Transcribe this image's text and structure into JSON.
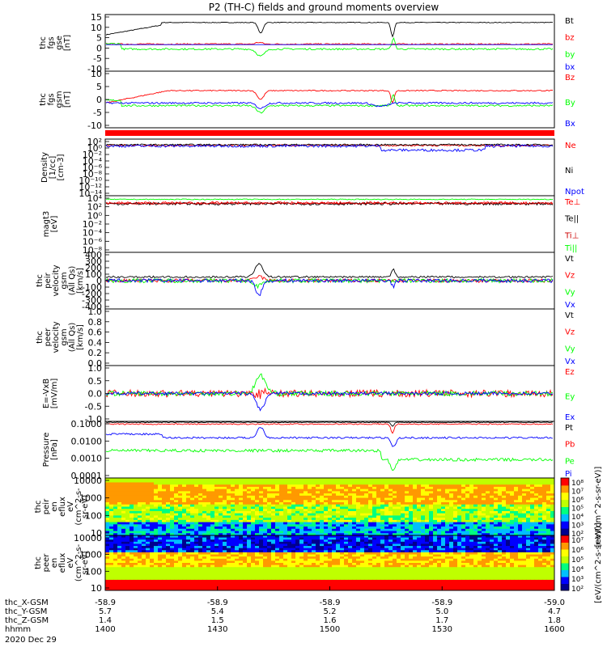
{
  "title": "P2 (TH-C) fields and ground moments overview",
  "colors": {
    "black": "#000000",
    "red": "#ff0000",
    "green": "#00ff00",
    "blue": "#0000ff",
    "red_dark": "#cc0000"
  },
  "date": "2020 Dec 29",
  "time_axis": {
    "row_labels": [
      "thc_X-GSM",
      "thc_Y-GSM",
      "thc_Z-GSM",
      "hhmm"
    ],
    "columns": [
      {
        "values": [
          "-58.9",
          "5.7",
          "1.4",
          "1400"
        ]
      },
      {
        "values": [
          "-58.9",
          "5.4",
          "1.5",
          "1430"
        ]
      },
      {
        "values": [
          "-58.9",
          "5.2",
          "1.6",
          "1500"
        ]
      },
      {
        "values": [
          "-58.9",
          "5.0",
          "1.7",
          "1530"
        ]
      },
      {
        "values": [
          "-59.0",
          "4.7",
          "1.8",
          "1600"
        ]
      }
    ]
  },
  "chart_data": [
    {
      "type": "line",
      "id": "fgs_gse",
      "ylabel": [
        "thc",
        "fgs",
        "gse",
        "[nT]"
      ],
      "ylim": [
        -15,
        17
      ],
      "yticks": [
        "15",
        "10",
        "5",
        "0",
        "-5",
        "-10"
      ],
      "series": [
        {
          "name": "Bt",
          "color": "black"
        },
        {
          "name": "bz",
          "color": "red"
        },
        {
          "name": "by",
          "color": "green"
        },
        {
          "name": "bx",
          "color": "blue"
        }
      ]
    },
    {
      "type": "line",
      "id": "fgs_gsm",
      "ylabel": [
        "thc",
        "fgs",
        "gsm",
        "[nT]"
      ],
      "ylim": [
        -15,
        17
      ],
      "yticks": [
        "10",
        "5",
        "0",
        "-5",
        "-10"
      ],
      "series": [
        {
          "name": "Bz",
          "color": "red"
        },
        {
          "name": "By",
          "color": "green"
        },
        {
          "name": "Bx",
          "color": "blue"
        }
      ]
    },
    {
      "type": "line",
      "id": "density",
      "ylabel": [
        "Density",
        "[1/cc]",
        "[cm-3]"
      ],
      "ylim": [
        -15,
        3
      ],
      "yticks": [
        "10²",
        "10⁰",
        "10⁻²",
        "10⁻⁴",
        "10⁻⁶",
        "10⁻⁸",
        "10⁻¹⁰",
        "10⁻¹²",
        "10⁻¹⁴"
      ],
      "series": [
        {
          "name": "Ne",
          "color": "red"
        },
        {
          "name": "Ni",
          "color": "black"
        },
        {
          "name": "Npot",
          "color": "blue"
        }
      ]
    },
    {
      "type": "line",
      "id": "temperature",
      "ylabel": [
        "magt3",
        "[eV]"
      ],
      "ylim": [
        -9,
        5
      ],
      "yticks": [
        "10⁴",
        "10²",
        "10⁰",
        "10⁻²",
        "10⁻⁴",
        "10⁻⁶",
        "10⁻⁸"
      ],
      "series": [
        {
          "name": "Te⊥",
          "color": "red"
        },
        {
          "name": "Te||",
          "color": "black"
        },
        {
          "name": "Ti⊥",
          "color": "red_dark"
        },
        {
          "name": "Ti||",
          "color": "green"
        }
      ]
    },
    {
      "type": "line",
      "id": "peir_velocity",
      "ylabel": [
        "thc",
        "peir",
        "velocity",
        "gsm",
        "(All Qs)",
        "[km/s]"
      ],
      "ylim": [
        -400,
        400
      ],
      "yticks": [
        "400",
        "300",
        "200",
        "100",
        "0",
        "-100",
        "-200",
        "-300",
        "-400"
      ],
      "series": [
        {
          "name": "Vt",
          "color": "black"
        },
        {
          "name": "Vz",
          "color": "red"
        },
        {
          "name": "Vy",
          "color": "green"
        },
        {
          "name": "Vx",
          "color": "blue"
        }
      ]
    },
    {
      "type": "line",
      "id": "peer_velocity",
      "ylabel": [
        "thc",
        "peer",
        "velocity",
        "gsm",
        "(All Qs)",
        "[km/s]"
      ],
      "ylim": [
        0,
        1
      ],
      "yticks": [
        "1.0",
        "0.8",
        "0.6",
        "0.4",
        "0.2",
        "0.0"
      ],
      "series": [
        {
          "name": "Vt",
          "color": "black"
        },
        {
          "name": "Vz",
          "color": "red"
        },
        {
          "name": "Vy",
          "color": "green"
        },
        {
          "name": "Vx",
          "color": "blue"
        }
      ]
    },
    {
      "type": "line",
      "id": "efield",
      "ylabel": [
        "E=-VxB",
        "[mV/m]"
      ],
      "ylim": [
        -1.4,
        1.4
      ],
      "yticks": [
        "1.0",
        "0.5",
        "0.0",
        "-0.5",
        "-1.0"
      ],
      "series": [
        {
          "name": "Ez",
          "color": "red"
        },
        {
          "name": "Ey",
          "color": "green"
        },
        {
          "name": "Ex",
          "color": "blue"
        }
      ]
    },
    {
      "type": "line",
      "id": "pressure",
      "ylabel": [
        "Pressure",
        "[nPa]"
      ],
      "ylim": [
        -4,
        -0.9
      ],
      "yticks": [
        "0.1000",
        "0.0100",
        "0.0010",
        "0.0001"
      ],
      "series": [
        {
          "name": "Pt",
          "color": "black"
        },
        {
          "name": "Pb",
          "color": "red"
        },
        {
          "name": "Pe",
          "color": "green"
        },
        {
          "name": "Pi",
          "color": "blue"
        }
      ]
    },
    {
      "type": "heatmap",
      "id": "peir_spec",
      "ylabel": [
        "thc",
        "peir",
        "en",
        "eflux",
        "eV",
        "(cm^2-s-",
        "sr-eV)"
      ],
      "ylim": [
        5,
        25000
      ],
      "yticks": [
        "10000",
        "1000",
        "100",
        "10"
      ],
      "colorbar": {
        "label": "[eV/(cm^2-s-sr-eV)]",
        "ticks": [
          "10⁸",
          "10⁷",
          "10⁶",
          "10⁵",
          "10⁴",
          "10³",
          "10²"
        ]
      }
    },
    {
      "type": "heatmap",
      "id": "peer_spec",
      "ylabel": [
        "thc",
        "peer",
        "en",
        "eflux",
        "eV",
        "(cm^2-s-",
        "sr-eV)"
      ],
      "ylim": [
        5,
        25000
      ],
      "yticks": [
        "10000",
        "1000",
        "100",
        "10"
      ],
      "colorbar": {
        "label": "[eV/(cm^2-s-sr-eV)]",
        "ticks": [
          "10⁷",
          "10⁶",
          "10⁵",
          "10⁴",
          "10³",
          "10²"
        ]
      }
    }
  ]
}
